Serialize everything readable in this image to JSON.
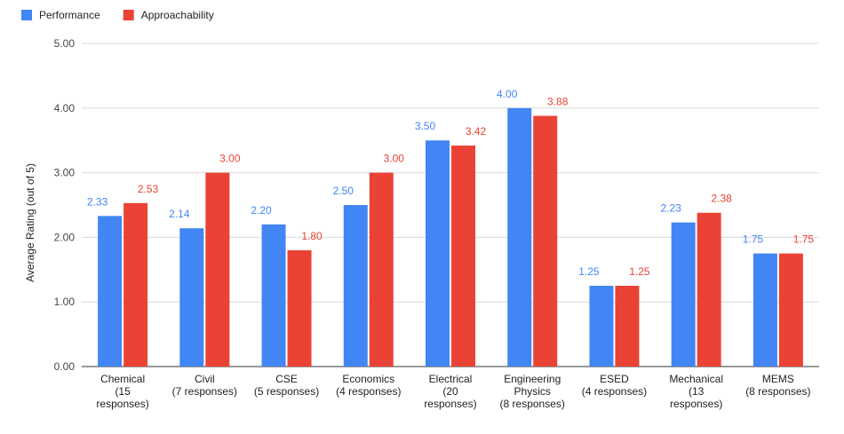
{
  "chart_data": {
    "type": "bar",
    "title": "",
    "xlabel": "",
    "ylabel": "Average Rating (out of 5)",
    "ylim": [
      0,
      5
    ],
    "yticks": [
      "0.00",
      "1.00",
      "2.00",
      "3.00",
      "4.00",
      "5.00"
    ],
    "grid": true,
    "legend_position": "top-left",
    "categories": [
      [
        "Chemical",
        "(15",
        "responses)"
      ],
      [
        "Civil",
        "(7 responses)"
      ],
      [
        "CSE",
        "(5 responses)"
      ],
      [
        "Economics",
        "(4 responses)"
      ],
      [
        "Electrical",
        "(20",
        "responses)"
      ],
      [
        "Engineering",
        "Physics",
        "(8 responses)"
      ],
      [
        "ESED",
        "(4 responses)"
      ],
      [
        "Mechanical",
        "(13",
        "responses)"
      ],
      [
        "MEMS",
        "(8 responses)"
      ]
    ],
    "series": [
      {
        "name": "Performance",
        "color": "#4285f4",
        "values": [
          2.33,
          2.14,
          2.2,
          2.5,
          3.5,
          4.0,
          1.25,
          2.23,
          1.75
        ],
        "labels": [
          "2.33",
          "2.14",
          "2.20",
          "2.50",
          "3.50",
          "4.00",
          "1.25",
          "2.23",
          "1.75"
        ]
      },
      {
        "name": "Approachability",
        "color": "#ea4335",
        "values": [
          2.53,
          3.0,
          1.8,
          3.0,
          3.42,
          3.88,
          1.25,
          2.38,
          1.75
        ],
        "labels": [
          "2.53",
          "3.00",
          "1.80",
          "3.00",
          "3.42",
          "3.88",
          "1.25",
          "2.38",
          "1.75"
        ]
      }
    ]
  }
}
